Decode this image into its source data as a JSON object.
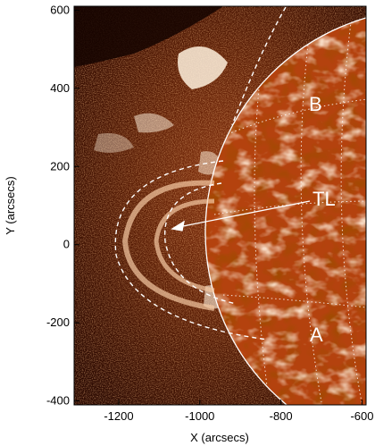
{
  "figure": {
    "x_axis": {
      "label": "X (arcsecs)",
      "range": [
        -1310,
        -590
      ],
      "ticks": [
        {
          "value": -1200,
          "label": "-1200"
        },
        {
          "value": -1000,
          "label": "-1000"
        },
        {
          "value": -800,
          "label": "-800"
        },
        {
          "value": -600,
          "label": "-600"
        }
      ]
    },
    "y_axis": {
      "label": "Y (arcsecs)",
      "range": [
        -410,
        610
      ],
      "ticks": [
        {
          "value": 600,
          "label": "600"
        },
        {
          "value": 400,
          "label": "400"
        },
        {
          "value": 200,
          "label": "200"
        },
        {
          "value": 0,
          "label": "0"
        },
        {
          "value": -200,
          "label": "-200"
        },
        {
          "value": -400,
          "label": "-400"
        }
      ]
    },
    "annotations": {
      "B": "B",
      "TL": "TL",
      "A": "A"
    },
    "colors": {
      "background": "#ffffff",
      "plot_dark": "#1a0400",
      "plot_mid": "#7a2a08",
      "disk": "#b8460f",
      "bright": "#ffe7cf",
      "overlay": "#ffffff"
    }
  }
}
